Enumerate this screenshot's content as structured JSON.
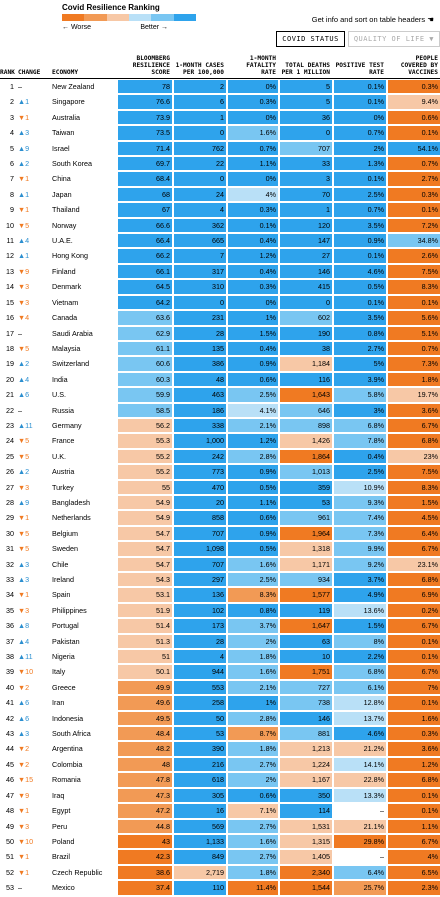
{
  "scale": {
    "title": "Covid Resilience Ranking",
    "worse_label": "← Worse",
    "better_label": "Better →",
    "colors": [
      "#f07a22",
      "#f29a55",
      "#f7c8a6",
      "#b9e0f7",
      "#79c6f2",
      "#2ea3ec"
    ]
  },
  "info_text": "Get info and sort on table headers",
  "tabs": [
    "COVID STATUS",
    "QUALITY OF LIFE ▼"
  ],
  "headers": {
    "rank": "RANK",
    "change": "CHANGE",
    "economy": "ECONOMY",
    "score": "BLOOMBERG RESILIENCE SCORE",
    "cases": "1-MONTH CASES PER 100,000",
    "fatality": "1-MONTH FATALITY RATE",
    "deaths": "TOTAL DEATHS PER 1 MILLION",
    "positive": "POSITIVE TEST RATE",
    "vaccines": "PEOPLE COVERED BY VACCINES"
  },
  "rows": [
    {
      "rank": "1",
      "dir": "none",
      "chg": "",
      "name": "New Zealand",
      "v": [
        "78",
        "2",
        "0%",
        "5",
        "0.1%",
        "0.3%"
      ],
      "c": [
        "#2ea3ec",
        "#2ea3ec",
        "#2ea3ec",
        "#2ea3ec",
        "#2ea3ec",
        "#f07a22"
      ]
    },
    {
      "rank": "2",
      "dir": "up",
      "chg": "1",
      "name": "Singapore",
      "v": [
        "76.6",
        "6",
        "0.3%",
        "5",
        "0.1%",
        "9.4%"
      ],
      "c": [
        "#2ea3ec",
        "#2ea3ec",
        "#2ea3ec",
        "#2ea3ec",
        "#2ea3ec",
        "#f7c8a6"
      ]
    },
    {
      "rank": "3",
      "dir": "down",
      "chg": "1",
      "name": "Australia",
      "v": [
        "73.9",
        "1",
        "0%",
        "36",
        "0%",
        "0.6%"
      ],
      "c": [
        "#2ea3ec",
        "#2ea3ec",
        "#2ea3ec",
        "#2ea3ec",
        "#2ea3ec",
        "#f07a22"
      ]
    },
    {
      "rank": "4",
      "dir": "up",
      "chg": "3",
      "name": "Taiwan",
      "v": [
        "73.5",
        "0",
        "1.6%",
        "0",
        "0.7%",
        "0.1%"
      ],
      "c": [
        "#2ea3ec",
        "#2ea3ec",
        "#79c6f2",
        "#2ea3ec",
        "#2ea3ec",
        "#f07a22"
      ]
    },
    {
      "rank": "5",
      "dir": "up",
      "chg": "9",
      "name": "Israel",
      "v": [
        "71.4",
        "762",
        "0.7%",
        "707",
        "2%",
        "54.1%"
      ],
      "c": [
        "#2ea3ec",
        "#2ea3ec",
        "#2ea3ec",
        "#79c6f2",
        "#2ea3ec",
        "#2ea3ec"
      ]
    },
    {
      "rank": "6",
      "dir": "up",
      "chg": "2",
      "name": "South Korea",
      "v": [
        "69.7",
        "22",
        "1.1%",
        "33",
        "1.3%",
        "0.7%"
      ],
      "c": [
        "#2ea3ec",
        "#2ea3ec",
        "#2ea3ec",
        "#2ea3ec",
        "#2ea3ec",
        "#f07a22"
      ]
    },
    {
      "rank": "7",
      "dir": "down",
      "chg": "1",
      "name": "China",
      "v": [
        "68.4",
        "0",
        "0%",
        "3",
        "0.1%",
        "2.7%"
      ],
      "c": [
        "#2ea3ec",
        "#2ea3ec",
        "#2ea3ec",
        "#2ea3ec",
        "#2ea3ec",
        "#f07a22"
      ]
    },
    {
      "rank": "8",
      "dir": "up",
      "chg": "1",
      "name": "Japan",
      "v": [
        "68",
        "24",
        "4%",
        "70",
        "2.5%",
        "0.3%"
      ],
      "c": [
        "#2ea3ec",
        "#2ea3ec",
        "#b9e0f7",
        "#2ea3ec",
        "#2ea3ec",
        "#f07a22"
      ]
    },
    {
      "rank": "9",
      "dir": "down",
      "chg": "1",
      "name": "Thailand",
      "v": [
        "67",
        "4",
        "0.3%",
        "1",
        "0.7%",
        "0.1%"
      ],
      "c": [
        "#2ea3ec",
        "#2ea3ec",
        "#2ea3ec",
        "#2ea3ec",
        "#2ea3ec",
        "#f07a22"
      ]
    },
    {
      "rank": "10",
      "dir": "down",
      "chg": "5",
      "name": "Norway",
      "v": [
        "66.6",
        "362",
        "0.1%",
        "120",
        "3.5%",
        "7.2%"
      ],
      "c": [
        "#2ea3ec",
        "#2ea3ec",
        "#2ea3ec",
        "#2ea3ec",
        "#2ea3ec",
        "#f07a22"
      ]
    },
    {
      "rank": "11",
      "dir": "up",
      "chg": "4",
      "name": "U.A.E.",
      "v": [
        "66.4",
        "665",
        "0.4%",
        "147",
        "0.9%",
        "34.8%"
      ],
      "c": [
        "#2ea3ec",
        "#2ea3ec",
        "#2ea3ec",
        "#2ea3ec",
        "#2ea3ec",
        "#79c6f2"
      ]
    },
    {
      "rank": "12",
      "dir": "up",
      "chg": "1",
      "name": "Hong Kong",
      "v": [
        "66.2",
        "7",
        "1.2%",
        "27",
        "0.1%",
        "2.6%"
      ],
      "c": [
        "#2ea3ec",
        "#2ea3ec",
        "#2ea3ec",
        "#2ea3ec",
        "#2ea3ec",
        "#f07a22"
      ]
    },
    {
      "rank": "13",
      "dir": "down",
      "chg": "9",
      "name": "Finland",
      "v": [
        "66.1",
        "317",
        "0.4%",
        "146",
        "4.6%",
        "7.5%"
      ],
      "c": [
        "#2ea3ec",
        "#2ea3ec",
        "#2ea3ec",
        "#2ea3ec",
        "#2ea3ec",
        "#f07a22"
      ]
    },
    {
      "rank": "14",
      "dir": "down",
      "chg": "3",
      "name": "Denmark",
      "v": [
        "64.5",
        "310",
        "0.3%",
        "415",
        "0.5%",
        "8.3%"
      ],
      "c": [
        "#2ea3ec",
        "#2ea3ec",
        "#2ea3ec",
        "#2ea3ec",
        "#2ea3ec",
        "#f07a22"
      ]
    },
    {
      "rank": "15",
      "dir": "down",
      "chg": "3",
      "name": "Vietnam",
      "v": [
        "64.2",
        "0",
        "0%",
        "0",
        "0.1%",
        "0.1%"
      ],
      "c": [
        "#2ea3ec",
        "#2ea3ec",
        "#2ea3ec",
        "#2ea3ec",
        "#2ea3ec",
        "#f07a22"
      ]
    },
    {
      "rank": "16",
      "dir": "down",
      "chg": "4",
      "name": "Canada",
      "v": [
        "63.6",
        "231",
        "1%",
        "602",
        "3.5%",
        "5.6%"
      ],
      "c": [
        "#79c6f2",
        "#2ea3ec",
        "#2ea3ec",
        "#79c6f2",
        "#2ea3ec",
        "#f07a22"
      ]
    },
    {
      "rank": "17",
      "dir": "none",
      "chg": "",
      "name": "Saudi Arabia",
      "v": [
        "62.9",
        "28",
        "1.5%",
        "190",
        "0.8%",
        "5.1%"
      ],
      "c": [
        "#79c6f2",
        "#2ea3ec",
        "#2ea3ec",
        "#2ea3ec",
        "#2ea3ec",
        "#f07a22"
      ]
    },
    {
      "rank": "18",
      "dir": "down",
      "chg": "5",
      "name": "Malaysia",
      "v": [
        "61.1",
        "135",
        "0.4%",
        "38",
        "2.7%",
        "0.7%"
      ],
      "c": [
        "#79c6f2",
        "#2ea3ec",
        "#2ea3ec",
        "#2ea3ec",
        "#2ea3ec",
        "#f07a22"
      ]
    },
    {
      "rank": "19",
      "dir": "up",
      "chg": "2",
      "name": "Switzerland",
      "v": [
        "60.6",
        "386",
        "0.9%",
        "1,184",
        "5%",
        "7.3%"
      ],
      "c": [
        "#79c6f2",
        "#2ea3ec",
        "#2ea3ec",
        "#f7c8a6",
        "#2ea3ec",
        "#f07a22"
      ]
    },
    {
      "rank": "20",
      "dir": "up",
      "chg": "4",
      "name": "India",
      "v": [
        "60.3",
        "48",
        "0.6%",
        "116",
        "3.9%",
        "1.8%"
      ],
      "c": [
        "#79c6f2",
        "#2ea3ec",
        "#2ea3ec",
        "#2ea3ec",
        "#2ea3ec",
        "#f07a22"
      ]
    },
    {
      "rank": "21",
      "dir": "up",
      "chg": "6",
      "name": "U.S.",
      "v": [
        "59.9",
        "463",
        "2.5%",
        "1,643",
        "5.8%",
        "19.7%"
      ],
      "c": [
        "#79c6f2",
        "#2ea3ec",
        "#79c6f2",
        "#f07a22",
        "#79c6f2",
        "#f7c8a6"
      ]
    },
    {
      "rank": "22",
      "dir": "none",
      "chg": "",
      "name": "Russia",
      "v": [
        "58.5",
        "186",
        "4.1%",
        "646",
        "3%",
        "3.6%"
      ],
      "c": [
        "#79c6f2",
        "#2ea3ec",
        "#b9e0f7",
        "#79c6f2",
        "#2ea3ec",
        "#f07a22"
      ]
    },
    {
      "rank": "23",
      "dir": "up",
      "chg": "11",
      "name": "Germany",
      "v": [
        "56.2",
        "338",
        "2.1%",
        "898",
        "6.8%",
        "6.7%"
      ],
      "c": [
        "#f7c8a6",
        "#2ea3ec",
        "#79c6f2",
        "#79c6f2",
        "#79c6f2",
        "#f07a22"
      ]
    },
    {
      "rank": "24",
      "dir": "down",
      "chg": "5",
      "name": "France",
      "v": [
        "55.3",
        "1,000",
        "1.2%",
        "1,426",
        "7.8%",
        "6.8%"
      ],
      "c": [
        "#f7c8a6",
        "#2ea3ec",
        "#2ea3ec",
        "#f7c8a6",
        "#79c6f2",
        "#f07a22"
      ]
    },
    {
      "rank": "25",
      "dir": "down",
      "chg": "5",
      "name": "U.K.",
      "v": [
        "55.2",
        "242",
        "2.8%",
        "1,864",
        "0.4%",
        "23%"
      ],
      "c": [
        "#f7c8a6",
        "#2ea3ec",
        "#79c6f2",
        "#f07a22",
        "#2ea3ec",
        "#f7c8a6"
      ]
    },
    {
      "rank": "26",
      "dir": "up",
      "chg": "2",
      "name": "Austria",
      "v": [
        "55.2",
        "773",
        "0.9%",
        "1,013",
        "2.5%",
        "7.5%"
      ],
      "c": [
        "#f7c8a6",
        "#2ea3ec",
        "#2ea3ec",
        "#79c6f2",
        "#2ea3ec",
        "#f07a22"
      ]
    },
    {
      "rank": "27",
      "dir": "down",
      "chg": "3",
      "name": "Turkey",
      "v": [
        "55",
        "470",
        "0.5%",
        "359",
        "10.9%",
        "8.3%"
      ],
      "c": [
        "#f7c8a6",
        "#2ea3ec",
        "#2ea3ec",
        "#2ea3ec",
        "#b9e0f7",
        "#f07a22"
      ]
    },
    {
      "rank": "28",
      "dir": "up",
      "chg": "9",
      "name": "Bangladesh",
      "v": [
        "54.9",
        "20",
        "1.1%",
        "53",
        "9.3%",
        "1.5%"
      ],
      "c": [
        "#f7c8a6",
        "#2ea3ec",
        "#2ea3ec",
        "#2ea3ec",
        "#79c6f2",
        "#f07a22"
      ]
    },
    {
      "rank": "29",
      "dir": "down",
      "chg": "1",
      "name": "Netherlands",
      "v": [
        "54.9",
        "858",
        "0.6%",
        "961",
        "7.4%",
        "4.5%"
      ],
      "c": [
        "#f7c8a6",
        "#2ea3ec",
        "#2ea3ec",
        "#79c6f2",
        "#79c6f2",
        "#f07a22"
      ]
    },
    {
      "rank": "30",
      "dir": "down",
      "chg": "5",
      "name": "Belgium",
      "v": [
        "54.7",
        "707",
        "0.9%",
        "1,964",
        "7.3%",
        "6.4%"
      ],
      "c": [
        "#f7c8a6",
        "#2ea3ec",
        "#2ea3ec",
        "#f07a22",
        "#79c6f2",
        "#f07a22"
      ]
    },
    {
      "rank": "31",
      "dir": "down",
      "chg": "5",
      "name": "Sweden",
      "v": [
        "54.7",
        "1,098",
        "0.5%",
        "1,318",
        "9.9%",
        "6.7%"
      ],
      "c": [
        "#f7c8a6",
        "#2ea3ec",
        "#2ea3ec",
        "#f7c8a6",
        "#79c6f2",
        "#f07a22"
      ]
    },
    {
      "rank": "32",
      "dir": "up",
      "chg": "3",
      "name": "Chile",
      "v": [
        "54.7",
        "707",
        "1.6%",
        "1,171",
        "9.2%",
        "23.1%"
      ],
      "c": [
        "#f7c8a6",
        "#2ea3ec",
        "#79c6f2",
        "#f7c8a6",
        "#79c6f2",
        "#f7c8a6"
      ]
    },
    {
      "rank": "33",
      "dir": "up",
      "chg": "3",
      "name": "Ireland",
      "v": [
        "54.3",
        "297",
        "2.5%",
        "934",
        "3.7%",
        "6.8%"
      ],
      "c": [
        "#f7c8a6",
        "#2ea3ec",
        "#79c6f2",
        "#79c6f2",
        "#2ea3ec",
        "#f07a22"
      ]
    },
    {
      "rank": "34",
      "dir": "down",
      "chg": "1",
      "name": "Spain",
      "v": [
        "53.1",
        "136",
        "8.3%",
        "1,577",
        "4.9%",
        "6.9%"
      ],
      "c": [
        "#f7c8a6",
        "#2ea3ec",
        "#f29a55",
        "#f07a22",
        "#2ea3ec",
        "#f07a22"
      ]
    },
    {
      "rank": "35",
      "dir": "down",
      "chg": "3",
      "name": "Philippines",
      "v": [
        "51.9",
        "102",
        "0.8%",
        "119",
        "13.6%",
        "0.2%"
      ],
      "c": [
        "#f7c8a6",
        "#2ea3ec",
        "#2ea3ec",
        "#2ea3ec",
        "#b9e0f7",
        "#f07a22"
      ]
    },
    {
      "rank": "36",
      "dir": "up",
      "chg": "8",
      "name": "Portugal",
      "v": [
        "51.4",
        "173",
        "3.7%",
        "1,647",
        "1.5%",
        "6.7%"
      ],
      "c": [
        "#f7c8a6",
        "#2ea3ec",
        "#79c6f2",
        "#f07a22",
        "#2ea3ec",
        "#f07a22"
      ]
    },
    {
      "rank": "37",
      "dir": "up",
      "chg": "4",
      "name": "Pakistan",
      "v": [
        "51.3",
        "28",
        "2%",
        "63",
        "8%",
        "0.1%"
      ],
      "c": [
        "#f7c8a6",
        "#2ea3ec",
        "#79c6f2",
        "#2ea3ec",
        "#79c6f2",
        "#f07a22"
      ]
    },
    {
      "rank": "38",
      "dir": "up",
      "chg": "11",
      "name": "Nigeria",
      "v": [
        "51",
        "4",
        "1.8%",
        "10",
        "2.2%",
        "0.1%"
      ],
      "c": [
        "#f7c8a6",
        "#2ea3ec",
        "#79c6f2",
        "#2ea3ec",
        "#2ea3ec",
        "#f07a22"
      ]
    },
    {
      "rank": "39",
      "dir": "down",
      "chg": "10",
      "name": "Italy",
      "v": [
        "50.1",
        "944",
        "1.6%",
        "1,751",
        "6.8%",
        "6.7%"
      ],
      "c": [
        "#f7c8a6",
        "#2ea3ec",
        "#79c6f2",
        "#f07a22",
        "#79c6f2",
        "#f07a22"
      ]
    },
    {
      "rank": "40",
      "dir": "down",
      "chg": "2",
      "name": "Greece",
      "v": [
        "49.9",
        "553",
        "2.1%",
        "727",
        "6.1%",
        "7%"
      ],
      "c": [
        "#f29a55",
        "#2ea3ec",
        "#79c6f2",
        "#79c6f2",
        "#79c6f2",
        "#f07a22"
      ]
    },
    {
      "rank": "41",
      "dir": "up",
      "chg": "6",
      "name": "Iran",
      "v": [
        "49.6",
        "258",
        "1%",
        "738",
        "12.8%",
        "0.1%"
      ],
      "c": [
        "#f29a55",
        "#2ea3ec",
        "#2ea3ec",
        "#79c6f2",
        "#b9e0f7",
        "#f07a22"
      ]
    },
    {
      "rank": "42",
      "dir": "up",
      "chg": "6",
      "name": "Indonesia",
      "v": [
        "49.5",
        "50",
        "2.8%",
        "146",
        "13.7%",
        "1.6%"
      ],
      "c": [
        "#f29a55",
        "#2ea3ec",
        "#79c6f2",
        "#2ea3ec",
        "#b9e0f7",
        "#f07a22"
      ]
    },
    {
      "rank": "43",
      "dir": "up",
      "chg": "3",
      "name": "South Africa",
      "v": [
        "48.4",
        "53",
        "8.7%",
        "881",
        "4.6%",
        "0.3%"
      ],
      "c": [
        "#f29a55",
        "#2ea3ec",
        "#f29a55",
        "#79c6f2",
        "#2ea3ec",
        "#f07a22"
      ]
    },
    {
      "rank": "44",
      "dir": "down",
      "chg": "2",
      "name": "Argentina",
      "v": [
        "48.2",
        "390",
        "1.8%",
        "1,213",
        "21.2%",
        "3.6%"
      ],
      "c": [
        "#f29a55",
        "#2ea3ec",
        "#79c6f2",
        "#f7c8a6",
        "#f7c8a6",
        "#f07a22"
      ]
    },
    {
      "rank": "45",
      "dir": "down",
      "chg": "2",
      "name": "Colombia",
      "v": [
        "48",
        "216",
        "2.7%",
        "1,224",
        "14.1%",
        "1.2%"
      ],
      "c": [
        "#f29a55",
        "#2ea3ec",
        "#79c6f2",
        "#f7c8a6",
        "#b9e0f7",
        "#f07a22"
      ]
    },
    {
      "rank": "46",
      "dir": "down",
      "chg": "15",
      "name": "Romania",
      "v": [
        "47.8",
        "618",
        "2%",
        "1,167",
        "22.8%",
        "6.8%"
      ],
      "c": [
        "#f29a55",
        "#2ea3ec",
        "#79c6f2",
        "#f7c8a6",
        "#f7c8a6",
        "#f07a22"
      ]
    },
    {
      "rank": "47",
      "dir": "down",
      "chg": "9",
      "name": "Iraq",
      "v": [
        "47.3",
        "305",
        "0.6%",
        "350",
        "13.3%",
        "0.1%"
      ],
      "c": [
        "#f29a55",
        "#2ea3ec",
        "#2ea3ec",
        "#2ea3ec",
        "#b9e0f7",
        "#f07a22"
      ]
    },
    {
      "rank": "48",
      "dir": "down",
      "chg": "1",
      "name": "Egypt",
      "v": [
        "47.2",
        "16",
        "7.1%",
        "114",
        "–",
        "0.1%"
      ],
      "c": [
        "#f29a55",
        "#2ea3ec",
        "#f7c8a6",
        "#2ea3ec",
        "#ffffff",
        "#f07a22"
      ]
    },
    {
      "rank": "49",
      "dir": "down",
      "chg": "3",
      "name": "Peru",
      "v": [
        "44.8",
        "569",
        "2.7%",
        "1,531",
        "21.1%",
        "1.1%"
      ],
      "c": [
        "#f29a55",
        "#2ea3ec",
        "#79c6f2",
        "#f7c8a6",
        "#f7c8a6",
        "#f07a22"
      ]
    },
    {
      "rank": "50",
      "dir": "down",
      "chg": "10",
      "name": "Poland",
      "v": [
        "43",
        "1,133",
        "1.6%",
        "1,315",
        "29.8%",
        "6.7%"
      ],
      "c": [
        "#f07a22",
        "#2ea3ec",
        "#79c6f2",
        "#f7c8a6",
        "#f07a22",
        "#f07a22"
      ]
    },
    {
      "rank": "51",
      "dir": "down",
      "chg": "1",
      "name": "Brazil",
      "v": [
        "42.3",
        "849",
        "2.7%",
        "1,405",
        "–",
        "4%"
      ],
      "c": [
        "#f07a22",
        "#2ea3ec",
        "#79c6f2",
        "#f7c8a6",
        "#ffffff",
        "#f07a22"
      ]
    },
    {
      "rank": "52",
      "dir": "down",
      "chg": "1",
      "name": "Czech Republic",
      "v": [
        "38.6",
        "2,719",
        "1.8%",
        "2,340",
        "6.4%",
        "6.5%"
      ],
      "c": [
        "#f07a22",
        "#f7c8a6",
        "#79c6f2",
        "#f07a22",
        "#79c6f2",
        "#f07a22"
      ]
    },
    {
      "rank": "53",
      "dir": "none",
      "chg": "",
      "name": "Mexico",
      "v": [
        "37.4",
        "110",
        "11.4%",
        "1,544",
        "25.7%",
        "2.3%"
      ],
      "c": [
        "#f07a22",
        "#2ea3ec",
        "#f07a22",
        "#f07a22",
        "#f29a55",
        "#f07a22"
      ]
    }
  ]
}
